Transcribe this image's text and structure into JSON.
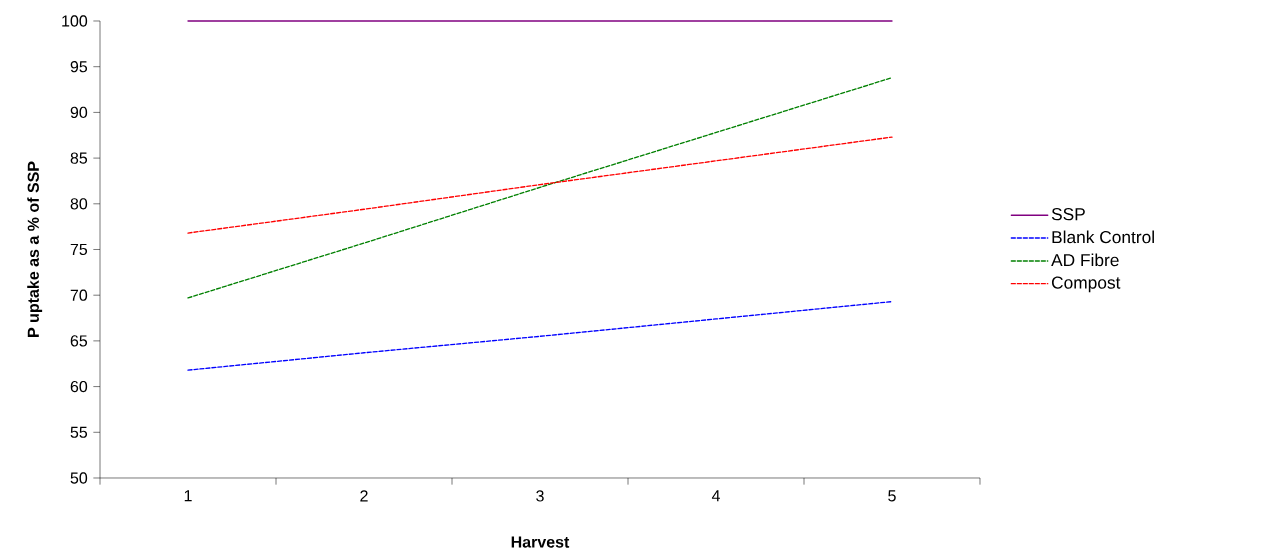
{
  "chart_data": {
    "type": "line",
    "xlabel": "**Harvest**",
    "ylabel": "**P uptake as a % of SSP**",
    "categories": [
      "1",
      "2",
      "3",
      "4",
      "5"
    ],
    "series": [
      {
        "name": "SSP",
        "color": "#800080",
        "line_style": "solid",
        "values": [
          100,
          100,
          100,
          100,
          100
        ]
      },
      {
        "name": "Blank Control",
        "color": "#0000ff",
        "line_style": "dashed",
        "values": [
          61.8,
          63.7,
          65.5,
          67.4,
          69.3
        ]
      },
      {
        "name": "AD Fibre",
        "color": "#008000",
        "line_style": "dashed",
        "values": [
          69.7,
          75.7,
          81.8,
          87.8,
          93.8
        ]
      },
      {
        "name": "Compost",
        "color": "#ff0000",
        "line_style": "dashed",
        "values": [
          76.8,
          79.4,
          82.1,
          84.7,
          87.3
        ]
      }
    ],
    "ylim": [
      50,
      100
    ],
    "yticks": [
      50,
      55,
      60,
      65,
      70,
      75,
      80,
      85,
      90,
      95,
      100
    ],
    "grid": false,
    "legend": "right",
    "marker": "none"
  }
}
